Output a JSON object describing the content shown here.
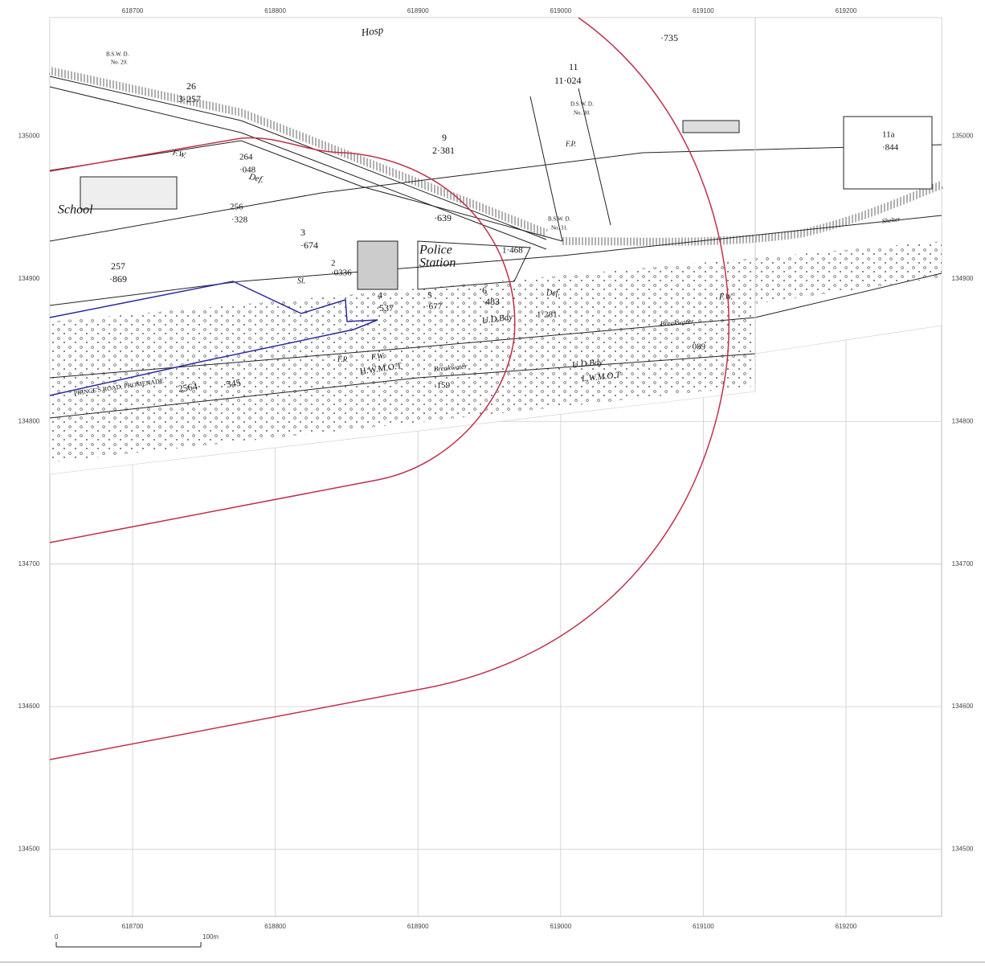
{
  "map": {
    "xlim": [
      618642,
      619267
    ],
    "ylim": [
      134453,
      135083
    ],
    "xticks": [
      618700,
      618800,
      618900,
      619000,
      619100,
      619200
    ],
    "yticks": [
      134500,
      134600,
      134700,
      134800,
      134900,
      135000
    ],
    "labels": [
      "Hosp",
      "School",
      "Police",
      "Station",
      "F.W.",
      "Def.",
      "Def.",
      "U.D.Bdy",
      "U.D.Bdy",
      "Breakwater",
      "Breakwater",
      "H.W.M.O.T",
      "L.W.M.O.T",
      "F.W.",
      "F.W.",
      "B.S.W. D.",
      "No. 29.",
      "D.S.W. D.",
      "No. 30.",
      "B.S.W. D.",
      "No. 31.",
      "26",
      "3·257",
      "9",
      "2·381",
      "11",
      "11·024",
      "264",
      "·048",
      "256",
      "·328",
      "3",
      "·674",
      "2",
      "·0336",
      "4",
      "·537",
      "5",
      "·677",
      "6",
      "·483",
      "1·468",
      "257",
      "·869",
      "·639",
      "1·281",
      "·735",
      "11a",
      "·844",
      "·089",
      "2564",
      "·345",
      "·159",
      "PRINCE'S ROAD, PROMENADE",
      "Shelter",
      "F.P.",
      "F.P.",
      "Sl."
    ],
    "scale_bar": {
      "start": "0",
      "end": "100m"
    }
  }
}
